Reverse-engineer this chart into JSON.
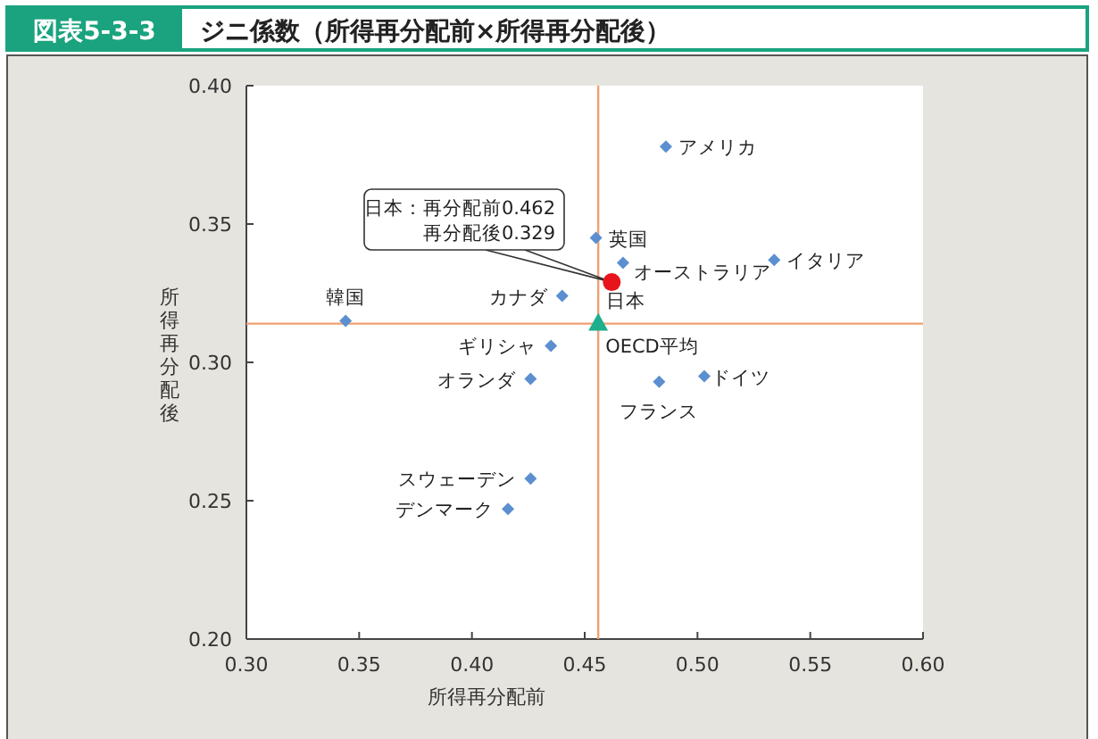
{
  "chart_data": {
    "type": "scatter",
    "title": "ジニ係数（所得再分配前×所得再分配後）",
    "subtitle": "図表5-3-3",
    "xlabel": "所得再分配前",
    "ylabel": "所得再分配後",
    "xlim": [
      0.3,
      0.6
    ],
    "ylim": [
      0.2,
      0.4
    ],
    "xticks": [
      {
        "value": 0.3,
        "label": "0.30"
      },
      {
        "value": 0.35,
        "label": "0.35"
      },
      {
        "value": 0.4,
        "label": "0.40"
      },
      {
        "value": 0.45,
        "label": "0.45"
      },
      {
        "value": 0.5,
        "label": "0.50"
      },
      {
        "value": 0.55,
        "label": "0.55"
      },
      {
        "value": 0.6,
        "label": "0.60"
      }
    ],
    "yticks": [
      {
        "value": 0.2,
        "label": "0.20"
      },
      {
        "value": 0.25,
        "label": "0.25"
      },
      {
        "value": 0.3,
        "label": "0.30"
      },
      {
        "value": 0.35,
        "label": "0.35"
      },
      {
        "value": 0.4,
        "label": "0.40"
      }
    ],
    "series": [
      {
        "name": "アメリカ",
        "color": "#5b8fd0",
        "marker": "diamond",
        "x": [
          0.486
        ],
        "values": [
          0.378
        ]
      },
      {
        "name": "英国",
        "color": "#5b8fd0",
        "marker": "diamond",
        "x": [
          0.455
        ],
        "values": [
          0.345
        ]
      },
      {
        "name": "オーストラリア",
        "color": "#5b8fd0",
        "marker": "diamond",
        "x": [
          0.467
        ],
        "values": [
          0.336
        ]
      },
      {
        "name": "イタリア",
        "color": "#5b8fd0",
        "marker": "diamond",
        "x": [
          0.534
        ],
        "values": [
          0.337
        ]
      },
      {
        "name": "カナダ",
        "color": "#5b8fd0",
        "marker": "diamond",
        "x": [
          0.44
        ],
        "values": [
          0.324
        ]
      },
      {
        "name": "韓国",
        "color": "#5b8fd0",
        "marker": "diamond",
        "x": [
          0.344
        ],
        "values": [
          0.315
        ]
      },
      {
        "name": "ギリシャ",
        "color": "#5b8fd0",
        "marker": "diamond",
        "x": [
          0.435
        ],
        "values": [
          0.306
        ]
      },
      {
        "name": "オランダ",
        "color": "#5b8fd0",
        "marker": "diamond",
        "x": [
          0.426
        ],
        "values": [
          0.294
        ]
      },
      {
        "name": "フランス",
        "color": "#5b8fd0",
        "marker": "diamond",
        "x": [
          0.483
        ],
        "values": [
          0.293
        ]
      },
      {
        "name": "ドイツ",
        "color": "#5b8fd0",
        "marker": "diamond",
        "x": [
          0.503
        ],
        "values": [
          0.295
        ]
      },
      {
        "name": "スウェーデン",
        "color": "#5b8fd0",
        "marker": "diamond",
        "x": [
          0.426
        ],
        "values": [
          0.258
        ]
      },
      {
        "name": "デンマーク",
        "color": "#5b8fd0",
        "marker": "diamond",
        "x": [
          0.416
        ],
        "values": [
          0.247
        ]
      },
      {
        "name": "日本",
        "color": "#e8141b",
        "marker": "circle",
        "x": [
          0.462
        ],
        "values": [
          0.329
        ]
      },
      {
        "name": "OECD平均",
        "color": "#1fae8e",
        "marker": "triangle",
        "x": [
          0.456
        ],
        "values": [
          0.314
        ]
      }
    ],
    "ref_lines": [
      {
        "axis": "x",
        "value": 0.456,
        "color": "#f0a070"
      },
      {
        "axis": "y",
        "value": 0.314,
        "color": "#f0a070"
      }
    ],
    "annotations": [
      {
        "text": "日本：再分配前0.462\n再分配後0.329",
        "x": 0.462,
        "y": 0.329
      }
    ],
    "legend": false,
    "grid": false
  }
}
